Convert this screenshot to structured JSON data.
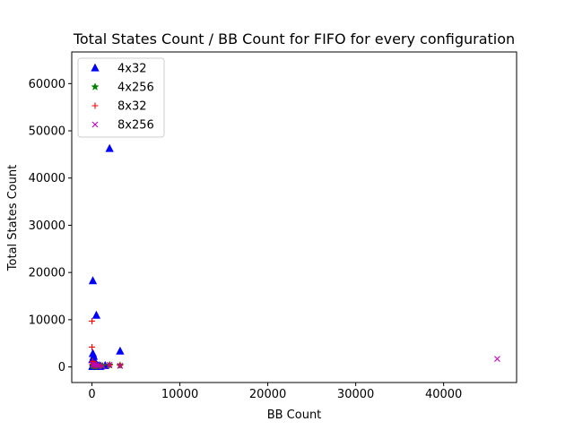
{
  "chart_data": {
    "type": "scatter",
    "title": "Total States Count / BB Count for FIFO for every configuration",
    "xlabel": "BB Count",
    "ylabel": "Total States Count",
    "xlim": [
      -2300,
      48300
    ],
    "ylim": [
      -3300,
      66700
    ],
    "xticks": [
      0,
      10000,
      20000,
      30000,
      40000
    ],
    "yticks": [
      0,
      10000,
      20000,
      30000,
      40000,
      50000,
      60000
    ],
    "grid": false,
    "legend_position": "top-left",
    "series": [
      {
        "name": "4x32",
        "marker": "triangle",
        "color": "#0000ff",
        "points": [
          [
            100,
            18200
          ],
          [
            500,
            10900
          ],
          [
            2000,
            46200
          ],
          [
            3200,
            3300
          ],
          [
            100,
            2800
          ],
          [
            200,
            2200
          ],
          [
            50,
            1500
          ],
          [
            300,
            1200
          ],
          [
            150,
            800
          ],
          [
            400,
            500
          ],
          [
            600,
            300
          ],
          [
            800,
            200
          ],
          [
            1000,
            150
          ],
          [
            1500,
            250
          ],
          [
            50,
            100
          ],
          [
            250,
            50
          ],
          [
            700,
            80
          ],
          [
            120,
            30
          ],
          [
            900,
            60
          ],
          [
            350,
            120
          ]
        ]
      },
      {
        "name": "4x256",
        "marker": "star",
        "color": "#008000",
        "points": [
          [
            100,
            300
          ],
          [
            500,
            200
          ],
          [
            2000,
            400
          ],
          [
            3200,
            300
          ],
          [
            800,
            150
          ],
          [
            300,
            100
          ],
          [
            150,
            250
          ],
          [
            1200,
            200
          ]
        ]
      },
      {
        "name": "8x32",
        "marker": "plus",
        "color": "#ff0000",
        "points": [
          [
            0,
            9700
          ],
          [
            0,
            4200
          ],
          [
            100,
            1200
          ],
          [
            200,
            700
          ],
          [
            500,
            500
          ],
          [
            2000,
            400
          ],
          [
            3200,
            350
          ],
          [
            1000,
            300
          ],
          [
            50,
            600
          ],
          [
            300,
            200
          ]
        ]
      },
      {
        "name": "8x256",
        "marker": "x",
        "color": "#bf00bf",
        "points": [
          [
            46100,
            1700
          ],
          [
            100,
            500
          ],
          [
            500,
            300
          ],
          [
            2000,
            450
          ],
          [
            3200,
            250
          ],
          [
            800,
            200
          ],
          [
            300,
            400
          ],
          [
            1200,
            150
          ]
        ]
      }
    ]
  }
}
